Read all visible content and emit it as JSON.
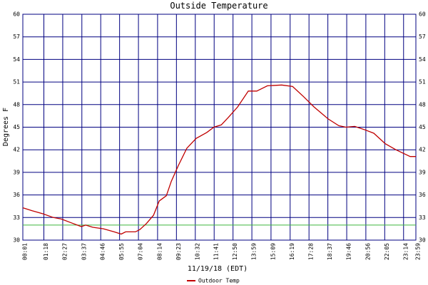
{
  "chart_data": {
    "type": "line",
    "title": "Outside Temperature",
    "x_label": "11/19/18 (EDT)",
    "y_label": "Degrees F",
    "x": [
      1,
      35,
      74,
      113,
      142,
      178,
      215,
      231,
      257,
      296,
      335,
      361,
      377,
      413,
      429,
      453,
      479,
      500,
      526,
      544,
      570,
      601,
      635,
      674,
      700,
      727,
      753,
      787,
      826,
      857,
      896,
      948,
      988,
      1027,
      1066,
      1118,
      1157,
      1183,
      1215,
      1249,
      1285,
      1327,
      1366,
      1418,
      1439
    ],
    "series": [
      {
        "name": "Outdoor Temp",
        "color": "#c00000",
        "values": [
          34.3,
          33.9,
          33.5,
          33.0,
          32.8,
          32.3,
          31.8,
          32.0,
          31.7,
          31.5,
          31.1,
          30.8,
          31.1,
          31.1,
          31.4,
          32.2,
          33.3,
          35.2,
          35.9,
          37.8,
          39.9,
          42.2,
          43.5,
          44.3,
          45.0,
          45.3,
          46.3,
          47.7,
          49.8,
          49.8,
          50.5,
          50.6,
          50.4,
          49.1,
          47.7,
          46.1,
          45.2,
          45.0,
          45.1,
          44.7,
          44.2,
          42.8,
          42.0,
          41.1,
          41.1
        ]
      }
    ],
    "reference_line": {
      "value": 32,
      "color": "#3cb43c"
    },
    "xlim": [
      1,
      1439
    ],
    "xticks": [
      {
        "value": 1,
        "label": "00:01"
      },
      {
        "value": 78,
        "label": "01:18"
      },
      {
        "value": 147,
        "label": "02:27"
      },
      {
        "value": 217,
        "label": "03:37"
      },
      {
        "value": 286,
        "label": "04:46"
      },
      {
        "value": 355,
        "label": "05:55"
      },
      {
        "value": 424,
        "label": "07:04"
      },
      {
        "value": 494,
        "label": "08:14"
      },
      {
        "value": 563,
        "label": "09:23"
      },
      {
        "value": 632,
        "label": "10:32"
      },
      {
        "value": 701,
        "label": "11:41"
      },
      {
        "value": 770,
        "label": "12:50"
      },
      {
        "value": 839,
        "label": "13:59"
      },
      {
        "value": 909,
        "label": "15:09"
      },
      {
        "value": 979,
        "label": "16:19"
      },
      {
        "value": 1048,
        "label": "17:28"
      },
      {
        "value": 1117,
        "label": "18:37"
      },
      {
        "value": 1186,
        "label": "19:46"
      },
      {
        "value": 1256,
        "label": "20:56"
      },
      {
        "value": 1325,
        "label": "22:05"
      },
      {
        "value": 1394,
        "label": "23:14"
      },
      {
        "value": 1439,
        "label": "23:59"
      }
    ],
    "ylim": [
      30,
      60
    ],
    "yticks": [
      30,
      33,
      36,
      39,
      42,
      45,
      48,
      51,
      54,
      57,
      60
    ],
    "grid": true,
    "grid_color": "#000080",
    "legend": "bottom"
  }
}
